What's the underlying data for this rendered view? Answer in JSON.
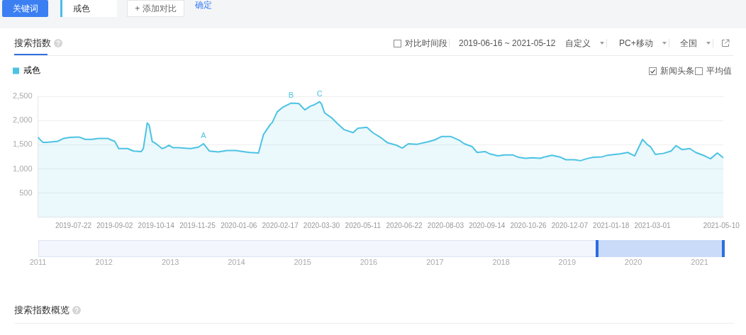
{
  "chart_data": [
    {
      "type": "other",
      "annotations": [
        "关键词",
        "戒色",
        "+ 添加对比",
        "确定"
      ]
    },
    {
      "type": "area",
      "title": "搜索指数",
      "x": [
        "2019-06-16",
        "2019-06-21",
        "2019-06-25",
        "2019-07-06",
        "2019-07-12",
        "2019-07-18",
        "2019-07-27",
        "2019-07-29",
        "2019-08-03",
        "2019-08-10",
        "2019-08-16",
        "2019-08-26",
        "2019-08-29",
        "2019-09-02",
        "2019-09-06",
        "2019-09-15",
        "2019-09-21",
        "2019-09-29",
        "2019-10-01",
        "2019-10-05",
        "2019-10-07",
        "2019-10-10",
        "2019-10-14",
        "2019-10-20",
        "2019-10-23",
        "2019-10-27",
        "2019-10-31",
        "2019-11-05",
        "2019-11-18",
        "2019-11-26",
        "2019-12-01",
        "2019-12-02",
        "2019-12-07",
        "2019-12-16",
        "2019-12-25",
        "2020-01-03",
        "2020-01-10",
        "2020-01-17",
        "2020-01-26",
        "2020-01-31",
        "2020-02-02",
        "2020-02-07",
        "2020-02-09",
        "2020-02-14",
        "2020-02-20",
        "2020-02-28",
        "2020-03-07",
        "2020-03-13",
        "2020-03-19",
        "2020-03-22",
        "2020-03-28",
        "2020-03-30",
        "2020-04-02",
        "2020-04-09",
        "2020-04-15",
        "2020-04-22",
        "2020-05-01",
        "2020-05-06",
        "2020-05-15",
        "2020-05-21",
        "2020-05-29",
        "2020-06-05",
        "2020-06-14",
        "2020-06-20",
        "2020-06-26",
        "2020-07-05",
        "2020-07-16",
        "2020-07-23",
        "2020-07-30",
        "2020-08-08",
        "2020-08-17",
        "2020-08-22",
        "2020-08-30",
        "2020-09-04",
        "2020-09-12",
        "2020-09-17",
        "2020-09-25",
        "2020-10-02",
        "2020-10-10",
        "2020-10-16",
        "2020-10-23",
        "2020-10-30",
        "2020-11-07",
        "2020-11-12",
        "2020-11-19",
        "2020-11-28",
        "2020-12-03",
        "2020-12-12",
        "2020-12-18",
        "2020-12-24",
        "2020-12-31",
        "2021-01-09",
        "2021-01-14",
        "2021-01-27",
        "2021-02-04",
        "2021-02-11",
        "2021-02-19",
        "2021-02-24",
        "2021-02-27",
        "2021-03-04",
        "2021-03-12",
        "2021-03-20",
        "2021-03-25",
        "2021-03-31",
        "2021-04-08",
        "2021-04-14",
        "2021-04-23",
        "2021-04-29",
        "2021-05-06",
        "2021-05-12"
      ],
      "series": [
        {
          "name": "戒色",
          "color": "#4cc3e3",
          "values": [
            1650,
            1550,
            1550,
            1570,
            1630,
            1650,
            1660,
            1650,
            1610,
            1610,
            1630,
            1630,
            1600,
            1570,
            1420,
            1420,
            1370,
            1360,
            1420,
            1950,
            1900,
            1570,
            1520,
            1420,
            1440,
            1490,
            1440,
            1440,
            1420,
            1450,
            1520,
            1500,
            1370,
            1350,
            1380,
            1380,
            1360,
            1340,
            1330,
            1710,
            1770,
            1920,
            1960,
            2180,
            2280,
            2360,
            2350,
            2220,
            2300,
            2320,
            2390,
            2340,
            2160,
            2060,
            1940,
            1810,
            1750,
            1840,
            1860,
            1750,
            1650,
            1540,
            1490,
            1430,
            1520,
            1510,
            1560,
            1600,
            1670,
            1670,
            1590,
            1520,
            1460,
            1340,
            1360,
            1310,
            1270,
            1290,
            1290,
            1240,
            1220,
            1230,
            1220,
            1250,
            1280,
            1240,
            1190,
            1190,
            1170,
            1210,
            1240,
            1250,
            1280,
            1310,
            1340,
            1270,
            1610,
            1500,
            1460,
            1300,
            1320,
            1370,
            1480,
            1400,
            1420,
            1340,
            1270,
            1210,
            1330,
            1230
          ]
        }
      ],
      "xlim": [
        "2019-06-16",
        "2021-05-12"
      ],
      "xticks": [
        "2019-07-22",
        "2019-09-02",
        "2019-10-14",
        "2019-11-25",
        "2020-01-06",
        "2020-02-17",
        "2020-03-30",
        "2020-05-11",
        "2020-06-22",
        "2020-08-03",
        "2020-09-14",
        "2020-10-26",
        "2020-12-07",
        "2021-01-18",
        "2021-03-01",
        "2021-05-10"
      ],
      "x2lim": [
        "2011-01-01",
        "2021-05-12"
      ],
      "x2ticks": [
        {
          "value": "2011-01-01",
          "label": "2011"
        },
        {
          "value": "2012-01-01",
          "label": "2012"
        },
        {
          "value": "2013-01-01",
          "label": "2013"
        },
        {
          "value": "2014-01-01",
          "label": "2014"
        },
        {
          "value": "2015-01-01",
          "label": "2015"
        },
        {
          "value": "2016-01-01",
          "label": "2016"
        },
        {
          "value": "2017-01-01",
          "label": "2017"
        },
        {
          "value": "2018-01-01",
          "label": "2018"
        },
        {
          "value": "2019-01-01",
          "label": "2019"
        },
        {
          "value": "2020-01-01",
          "label": "2020"
        },
        {
          "value": "2021-01-01",
          "label": "2021"
        }
      ],
      "ylim": [
        0,
        2500
      ],
      "yticks": [
        500,
        {
          "value": 1000,
          "label": "1,000"
        },
        {
          "value": 1500,
          "label": "1,500"
        },
        {
          "value": 2000,
          "label": "2,000"
        },
        {
          "value": 2500,
          "label": "2,500"
        }
      ],
      "grid": "y",
      "legend": "top left",
      "marker": "none",
      "annotations": [
        "对比时间段",
        "2019-06-16 ~ 2021-05-12",
        "自定义",
        "PC+移动",
        "全国",
        "新闻头条",
        "平均值",
        {
          "text": "A",
          "x": "2019-12-01",
          "y": 1520
        },
        {
          "text": "B",
          "x": "2020-02-28",
          "y": 2360
        },
        {
          "text": "C",
          "x": "2020-03-28",
          "y": 2390
        }
      ]
    },
    {
      "type": "other",
      "title": "搜索指数概览"
    }
  ]
}
